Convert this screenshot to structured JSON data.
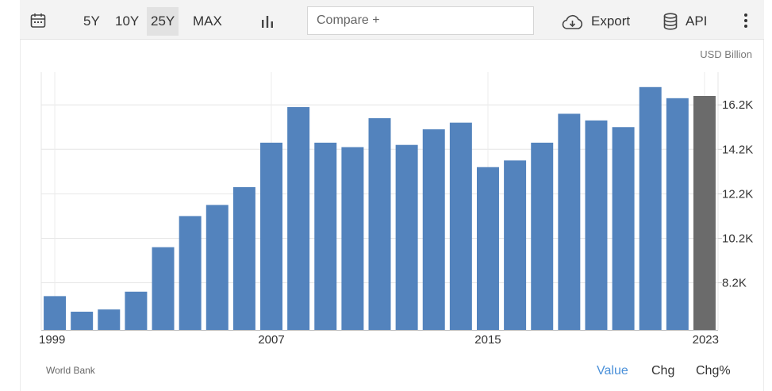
{
  "toolbar": {
    "icons": {
      "calendar": "calendar-icon",
      "chart_type": "bar-chart-icon",
      "export": "cloud-download-icon",
      "api": "database-icon",
      "menu": "kebab-menu-icon"
    },
    "ranges": [
      "5Y",
      "10Y",
      "25Y",
      "MAX"
    ],
    "active_range": "25Y",
    "compare_placeholder": "Compare +",
    "export_label": "Export",
    "api_label": "API"
  },
  "footer": {
    "source": "World Bank",
    "modes": [
      "Value",
      "Chg",
      "Chg%"
    ],
    "active_mode": "Value"
  },
  "colors": {
    "bar": "#5383bd",
    "bar_latest": "#6b6b6b",
    "active": "#4a90d9"
  },
  "chart_data": {
    "type": "bar",
    "unit": "USD Billion",
    "categories": [
      "1999",
      "2000",
      "2001",
      "2002",
      "2003",
      "2004",
      "2005",
      "2006",
      "2007",
      "2008",
      "2009",
      "2010",
      "2011",
      "2012",
      "2013",
      "2014",
      "2015",
      "2016",
      "2017",
      "2018",
      "2019",
      "2020",
      "2021",
      "2022",
      "2023"
    ],
    "values": [
      7.6,
      6.9,
      7.0,
      7.8,
      9.8,
      11.2,
      11.7,
      12.5,
      14.5,
      16.1,
      14.5,
      14.3,
      15.6,
      14.4,
      15.1,
      15.4,
      13.4,
      13.7,
      14.5,
      15.8,
      15.5,
      15.2,
      17.0,
      16.5,
      16.6
    ],
    "y_ticks": [
      8.2,
      10.2,
      12.2,
      14.2,
      16.2
    ],
    "y_tick_labels": [
      "8.2K",
      "10.2K",
      "12.2K",
      "14.2K",
      "16.2K"
    ],
    "x_tick_labels": [
      "1999",
      "2007",
      "2015",
      "2023"
    ],
    "ylim": [
      6.08,
      17.67
    ],
    "y_axis_position": "right",
    "grid": true,
    "highlight_last": true
  }
}
